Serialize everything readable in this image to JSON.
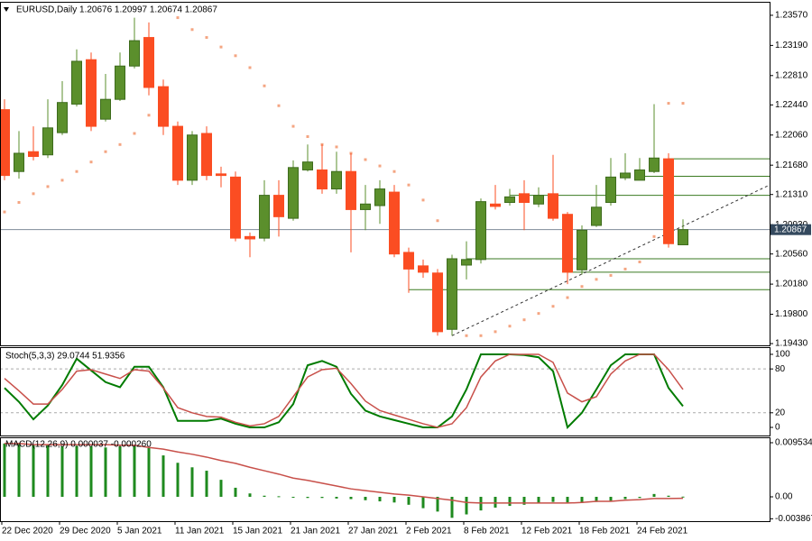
{
  "chart_data": [
    {
      "type": "candlestick",
      "title": "EURUSD,Daily 1.20676 1.20997 1.20674 1.20867",
      "categories": [
        "22 Dec 2020",
        null,
        null,
        null,
        "29 Dec 2020",
        null,
        null,
        null,
        "5 Jan 2021",
        null,
        null,
        null,
        "11 Jan 2021",
        null,
        null,
        null,
        "15 Jan 2021",
        null,
        null,
        null,
        "21 Jan 2021",
        null,
        null,
        null,
        "27 Jan 2021",
        null,
        null,
        null,
        "2 Feb 2021",
        null,
        null,
        null,
        "8 Feb 2021",
        null,
        null,
        null,
        "12 Feb 2021",
        null,
        null,
        null,
        "18 Feb 2021",
        null,
        null,
        null,
        "24 Feb 2021",
        null,
        null,
        null
      ],
      "open": [
        1.2238,
        1.216,
        1.2185,
        1.2181,
        1.2209,
        1.2245,
        1.2301,
        1.2226,
        1.2251,
        1.2293,
        1.2329,
        1.2267,
        1.2217,
        1.2149,
        1.2208,
        1.2157,
        1.2153,
        1.2078,
        1.2076,
        1.213,
        1.2101,
        1.2162,
        1.2162,
        1.2138,
        1.216,
        1.2112,
        1.2117,
        1.2134,
        1.2058,
        1.2041,
        1.2032,
        1.1961,
        1.2042,
        1.2049,
        1.2119,
        1.2121,
        1.2132,
        1.2119,
        1.2132,
        1.2106,
        1.2036,
        1.2092,
        1.2121,
        1.2152,
        1.2149,
        1.216,
        1.2176,
        1.20676
      ],
      "high": [
        1.2251,
        1.2211,
        1.2217,
        1.2251,
        1.2274,
        1.2314,
        1.231,
        1.2283,
        1.231,
        1.2354,
        1.2348,
        1.2276,
        1.2223,
        1.2211,
        1.2217,
        1.2166,
        1.216,
        1.2083,
        1.2149,
        1.2149,
        1.2174,
        1.2194,
        1.2194,
        1.2185,
        1.2183,
        1.2143,
        1.2149,
        1.2143,
        1.2064,
        1.2049,
        1.2037,
        1.2055,
        1.2072,
        1.2126,
        1.2143,
        1.2138,
        1.2149,
        1.214,
        1.2181,
        1.2109,
        1.2092,
        1.2143,
        1.2177,
        1.2183,
        1.2177,
        1.2245,
        1.2183,
        1.20997
      ],
      "low": [
        1.2149,
        1.2151,
        1.2174,
        1.2177,
        1.2206,
        1.2242,
        1.2211,
        1.2223,
        1.2249,
        1.229,
        1.2256,
        1.2206,
        1.2143,
        1.2143,
        1.2149,
        1.214,
        1.2072,
        1.2052,
        1.2072,
        1.2078,
        1.2098,
        1.216,
        1.2132,
        1.2132,
        1.2058,
        1.2086,
        1.2094,
        1.2052,
        1.2007,
        1.2026,
        1.1953,
        1.1953,
        1.2024,
        1.2044,
        1.2112,
        1.2117,
        1.2086,
        1.2115,
        1.2098,
        1.2018,
        1.203,
        1.209,
        1.2117,
        1.2149,
        1.2149,
        1.2158,
        1.2064,
        1.20674
      ],
      "close": [
        1.2155,
        1.2183,
        1.2179,
        1.2215,
        1.2247,
        1.2299,
        1.2217,
        1.2251,
        1.2293,
        1.2325,
        1.2266,
        1.2217,
        1.2149,
        1.2206,
        1.2155,
        1.2155,
        1.2076,
        1.2075,
        1.213,
        1.2103,
        1.2165,
        1.2172,
        1.2138,
        1.216,
        1.2112,
        1.2119,
        1.2138,
        1.2056,
        1.2037,
        1.2033,
        1.1958,
        1.205,
        1.2049,
        1.2122,
        1.2116,
        1.2128,
        1.2121,
        1.213,
        1.2101,
        1.2033,
        1.2086,
        1.2115,
        1.2153,
        1.2158,
        1.2162,
        1.2177,
        1.2069,
        1.20867
      ],
      "sar": [
        1.2109,
        1.2121,
        1.2132,
        1.2141,
        1.2149,
        1.216,
        1.2172,
        1.2185,
        1.2194,
        1.2208,
        1.2231,
        null,
        1.2354,
        1.2339,
        1.2329,
        1.2317,
        1.2306,
        1.2291,
        1.2268,
        1.2243,
        1.2217,
        1.2204,
        1.2194,
        1.2191,
        1.2183,
        1.2175,
        1.2167,
        1.216,
        1.2143,
        1.2124,
        1.2098,
        null,
        1.1953,
        1.1953,
        1.1958,
        1.1965,
        1.1973,
        1.1981,
        1.199,
        1.2001,
        1.2015,
        1.2024,
        1.2029,
        1.2037,
        1.2046,
        1.2078,
        1.2246,
        1.2246
      ],
      "up_color": "#5b8f2c",
      "down_color": "#fb4d22",
      "sar_color": "#f4a582",
      "hlines": [
        {
          "price": 1.2176,
          "from": 46
        },
        {
          "price": 1.2154,
          "from": 44
        },
        {
          "price": 1.213,
          "from": 35
        },
        {
          "price": 1.205,
          "from": 32
        },
        {
          "price": 1.2033,
          "from": 39
        },
        {
          "price": 1.2011,
          "from": 28
        }
      ],
      "hline_color": "#3a7a20",
      "trendline": {
        "from": [
          31,
          1.1953
        ],
        "to": [
          53,
          1.2143
        ]
      },
      "ylim": [
        1.19408,
        1.2374
      ],
      "yticks": [
        {
          "value": 1.1943,
          "label": "1.19430"
        },
        {
          "value": 1.198,
          "label": "1.19800"
        },
        {
          "value": 1.2018,
          "label": "1.20180"
        },
        {
          "value": 1.2056,
          "label": "1.20560"
        },
        {
          "value": 1.2093,
          "label": "1.20930"
        },
        {
          "value": 1.2131,
          "label": "1.21310"
        },
        {
          "value": 1.2168,
          "label": "1.21680"
        },
        {
          "value": 1.2206,
          "label": "1.22060"
        },
        {
          "value": 1.2244,
          "label": "1.22440"
        },
        {
          "value": 1.2281,
          "label": "1.22810"
        },
        {
          "value": 1.2319,
          "label": "1.23190"
        },
        {
          "value": 1.2357,
          "label": "1.23570"
        }
      ]
    },
    {
      "type": "line",
      "title": "Stoch(5,3,3) 29.0744 51.9356",
      "series": [
        {
          "color": "#007b00",
          "values": [
            54,
            35,
            11,
            30,
            58,
            94,
            78,
            62,
            55,
            83,
            83,
            55,
            9,
            9,
            9,
            12,
            5,
            0,
            0,
            7,
            32,
            85,
            91,
            83,
            46,
            23,
            15,
            10,
            5,
            0,
            0,
            15,
            52,
            100,
            100,
            100,
            99,
            96,
            77,
            0,
            20,
            52,
            85,
            100,
            100,
            100,
            54,
            29.0744
          ]
        },
        {
          "color": "#c8504a",
          "values": [
            67,
            50,
            32,
            32,
            52,
            77,
            79,
            73,
            67,
            79,
            77,
            54,
            27,
            20,
            15,
            14,
            7,
            2,
            5,
            15,
            42,
            69,
            79,
            81,
            60,
            36,
            23,
            17,
            11,
            5,
            0,
            5,
            27,
            69,
            91,
            100,
            100,
            100,
            89,
            47,
            35,
            42,
            73,
            91,
            100,
            100,
            79,
            51.9356
          ]
        }
      ],
      "ylim": [
        -11.1,
        108.6
      ],
      "yticks": [
        0,
        20,
        80,
        100
      ],
      "levels": [
        20,
        80
      ]
    },
    {
      "type": "macd",
      "title": "MACD(12,26,9) 0.000037 -0.000260",
      "series": [
        {
          "style": "bar",
          "color": "#1e8a1e",
          "values": [
            0.0094,
            0.0094,
            0.0091,
            0.0091,
            0.0089,
            0.009,
            0.0089,
            0.0087,
            0.0089,
            0.0089,
            0.0086,
            0.0073,
            0.006,
            0.0052,
            0.0046,
            0.003,
            0.0016,
            0.0006,
            0.0002,
            0.0001,
            -0.0001,
            -0.0002,
            -0.0002,
            -0.0003,
            -0.0004,
            -0.0006,
            -0.0008,
            -0.001,
            -0.0014,
            -0.002,
            -0.0026,
            -0.0037,
            -0.0031,
            -0.0024,
            -0.0019,
            -0.0016,
            -0.0014,
            -0.0011,
            -0.0009,
            -0.001,
            -0.0011,
            -0.0009,
            -0.0007,
            -0.0004,
            -0.0002,
            0.0005,
            0.0002,
            3.7e-05
          ]
        },
        {
          "style": "line",
          "color": "#c8504a",
          "values": [
            0.0094,
            0.0094,
            0.0092,
            0.0092,
            0.0092,
            0.0092,
            0.0092,
            0.0092,
            0.0091,
            0.0091,
            0.0087,
            0.0084,
            0.0079,
            0.0075,
            0.007,
            0.0064,
            0.0059,
            0.0052,
            0.0046,
            0.004,
            0.0033,
            0.0029,
            0.0024,
            0.0019,
            0.0014,
            0.0011,
            0.0008,
            0.0005,
            0.0003,
            0,
            -0.0003,
            -0.0006,
            -0.001,
            -0.0011,
            -0.0011,
            -0.0011,
            -0.0011,
            -0.0011,
            -0.0011,
            -0.0011,
            -0.001,
            -0.0008,
            -0.0008,
            -0.0006,
            -0.0005,
            -0.0003,
            -0.0003,
            -0.00026
          ]
        }
      ],
      "ylim": [
        -0.00429,
        0.01033
      ],
      "yticks": [
        -0.003867,
        {
          "value": 0,
          "label": "0.00"
        },
        0.009534
      ]
    }
  ]
}
